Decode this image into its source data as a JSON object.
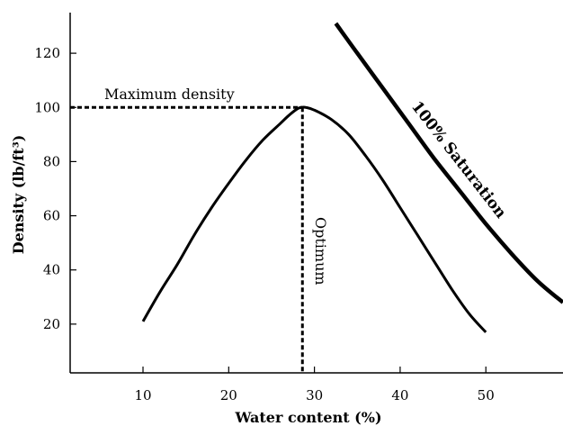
{
  "chart_data": {
    "type": "line",
    "title": "",
    "xlabel": "Water content (%)",
    "ylabel": "Density (lb/ft³)",
    "xlim": [
      1.5,
      59
    ],
    "ylim": [
      2,
      135
    ],
    "xticks": [
      10,
      20,
      30,
      40,
      50
    ],
    "yticks": [
      20,
      40,
      60,
      80,
      100,
      120
    ],
    "series": [
      {
        "x": [
          10,
          12,
          14,
          16,
          18,
          20,
          22,
          24,
          26,
          27,
          28,
          28.5,
          29,
          30,
          32,
          34,
          36,
          38,
          40,
          42,
          44,
          46,
          48,
          50
        ],
        "y": [
          21,
          32,
          42,
          53,
          63,
          72,
          80.5,
          88,
          94,
          97,
          99.5,
          100,
          100,
          99,
          95.5,
          90,
          82,
          73,
          63,
          53,
          43,
          33,
          24,
          17
        ]
      },
      {
        "x": [
          32.5,
          35,
          38,
          41,
          44,
          47,
          50,
          53,
          56,
          59
        ],
        "y": [
          131,
          120,
          107,
          94,
          81,
          69,
          57,
          46,
          36,
          28
        ]
      }
    ],
    "annotations": {
      "max_density": "Maximum density",
      "optimum": "Optimum",
      "saturation": "100% Saturation"
    },
    "reference_lines": {
      "max_density_y": 100,
      "optimum_x": 28.6
    }
  }
}
